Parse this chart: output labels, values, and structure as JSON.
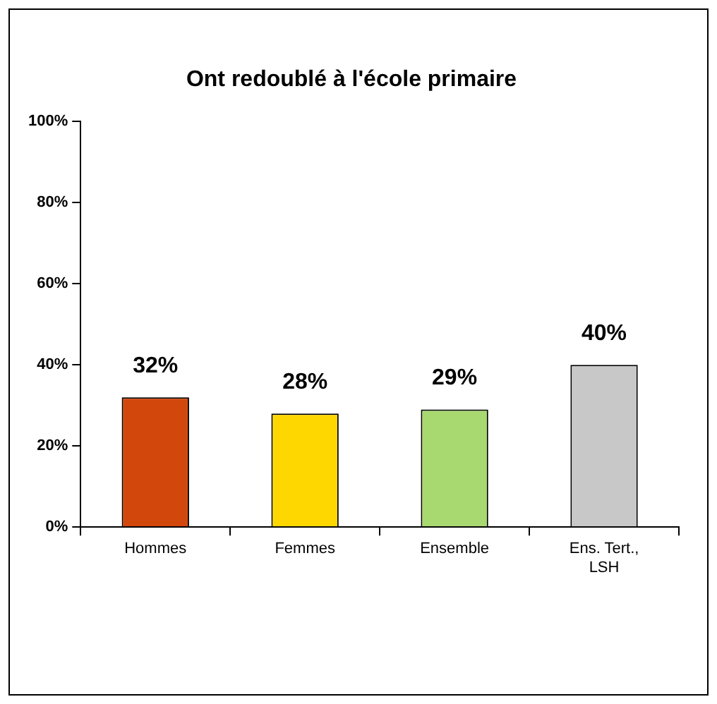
{
  "chart_data": {
    "type": "bar",
    "title": "Ont redoublé à l'école primaire",
    "categories": [
      "Hommes",
      "Femmes",
      "Ensemble",
      "Ens. Tert., LSH"
    ],
    "values": [
      32,
      28,
      29,
      40
    ],
    "colors": [
      "#d2480c",
      "#ffd700",
      "#a8d870",
      "#c8c8c8"
    ],
    "value_labels": [
      "32%",
      "28%",
      "29%",
      "40%"
    ],
    "ylim": [
      0,
      100
    ],
    "yticks": [
      {
        "value": 0,
        "label": "0%"
      },
      {
        "value": 20,
        "label": "20%"
      },
      {
        "value": 40,
        "label": "40%"
      },
      {
        "value": 60,
        "label": "60%"
      },
      {
        "value": 80,
        "label": "80%"
      },
      {
        "value": 100,
        "label": "100%"
      }
    ],
    "grid": false,
    "legend": false
  }
}
